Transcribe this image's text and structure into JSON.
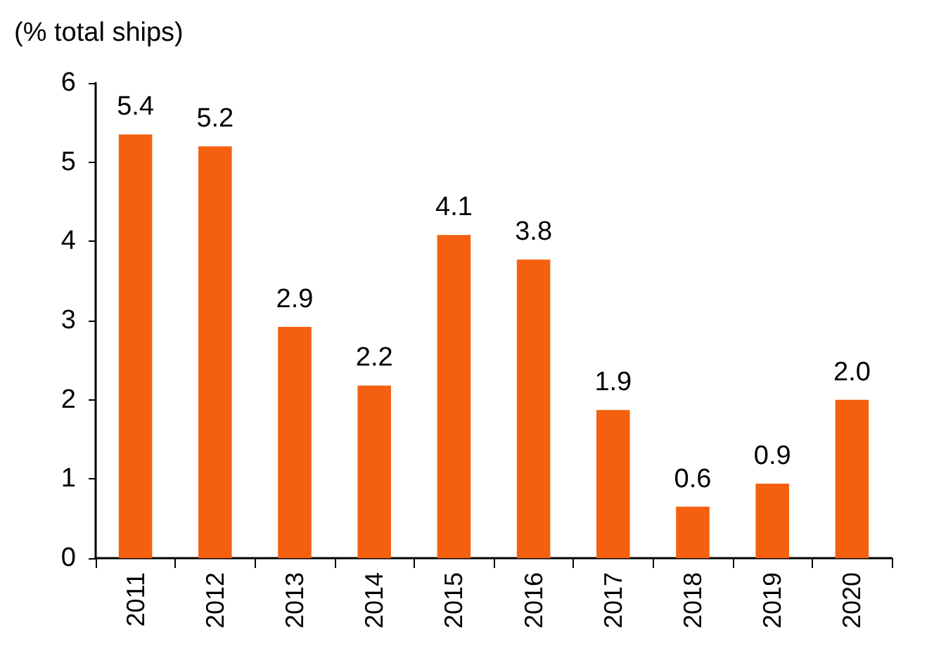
{
  "chart_data": {
    "type": "bar",
    "ylabel": "(% total ships)",
    "categories": [
      "2011",
      "2012",
      "2013",
      "2014",
      "2015",
      "2016",
      "2017",
      "2018",
      "2019",
      "2020"
    ],
    "values": [
      5.35,
      5.2,
      2.92,
      2.18,
      4.08,
      3.77,
      1.87,
      0.65,
      0.94,
      2.0
    ],
    "value_labels": [
      "5.4",
      "5.2",
      "2.9",
      "2.2",
      "4.1",
      "3.8",
      "1.9",
      "0.6",
      "0.9",
      "2.0"
    ],
    "color": "#f4600f",
    "ylim": [
      0,
      6
    ],
    "yticks": [
      0,
      1,
      2,
      3,
      4,
      5,
      6
    ],
    "grid": false
  }
}
